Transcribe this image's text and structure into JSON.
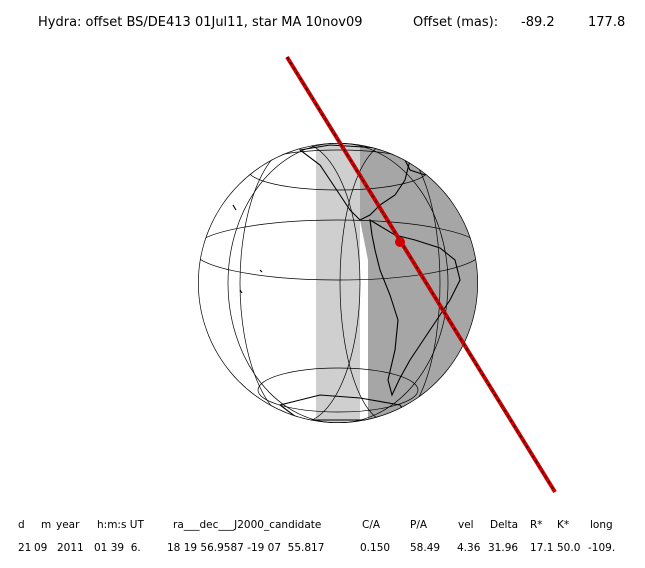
{
  "header": {
    "title": "Hydra: offset BS/DE413 01Jul11, star MA 10nov09",
    "offset_label": "Offset (mas):",
    "offsets": [
      "-89.2",
      "177.8"
    ]
  },
  "table": {
    "headers": [
      "d",
      "m",
      "year",
      "h:m:s UT",
      "ra___dec___J2000_candidate",
      "C/A",
      "P/A",
      "vel",
      "Delta",
      "R*",
      "K*",
      "long"
    ],
    "rows": [
      [
        "21",
        "09",
        "2011",
        "01 39  6.",
        "18 19 56.9587 -19 07  55.817",
        "0.150",
        "58.49",
        "4.36",
        "31.96",
        "17.1",
        "50.0",
        "-109."
      ]
    ]
  }
}
